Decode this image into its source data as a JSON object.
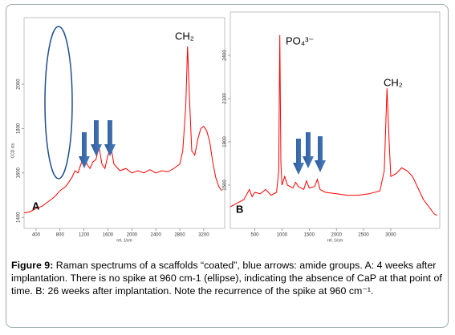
{
  "chart_data": [
    {
      "type": "line",
      "xlabel": "rel. 1/cm",
      "ylabel": "CCD cts",
      "xlim": [
        200,
        3550
      ],
      "xticks": [
        400,
        800,
        1200,
        1600,
        2000,
        2400,
        2800,
        3200
      ],
      "ylim": [
        1350,
        2300
      ],
      "yticks": [
        1400,
        1600,
        1800,
        2000
      ],
      "annotations": [
        "A",
        "CH₂"
      ],
      "x": [
        200,
        300,
        400,
        500,
        600,
        700,
        800,
        900,
        1000,
        1050,
        1100,
        1150,
        1200,
        1250,
        1300,
        1350,
        1400,
        1450,
        1500,
        1550,
        1600,
        1650,
        1700,
        1800,
        1900,
        2000,
        2100,
        2200,
        2300,
        2400,
        2500,
        2600,
        2700,
        2800,
        2850,
        2900,
        2930,
        2960,
        3000,
        3050,
        3100,
        3150,
        3200,
        3250,
        3300,
        3350,
        3400,
        3450,
        3500
      ],
      "series": [
        {
          "color": "#ff0000",
          "values": [
            1420,
            1425,
            1440,
            1450,
            1470,
            1490,
            1520,
            1540,
            1580,
            1610,
            1600,
            1640,
            1680,
            1640,
            1620,
            1650,
            1660,
            1720,
            1640,
            1620,
            1680,
            1720,
            1640,
            1610,
            1620,
            1600,
            1610,
            1600,
            1615,
            1600,
            1610,
            1605,
            1620,
            1640,
            1700,
            1900,
            2170,
            1950,
            1700,
            1680,
            1750,
            1800,
            1810,
            1790,
            1740,
            1650,
            1580,
            1540,
            1520
          ]
        }
      ]
    },
    {
      "type": "line",
      "xlabel": "rel. 1/cm",
      "xlim": [
        50,
        3900
      ],
      "xticks": [
        500,
        1000,
        1500,
        2000,
        2500,
        3000
      ],
      "ylim": [
        1200,
        2700
      ],
      "yticks": [
        1500,
        1800,
        2100,
        2400
      ],
      "annotations": [
        "B",
        "PO₄³⁻",
        "CH₂"
      ],
      "x": [
        50,
        200,
        300,
        400,
        450,
        500,
        600,
        700,
        800,
        900,
        940,
        960,
        980,
        1000,
        1050,
        1100,
        1200,
        1250,
        1300,
        1400,
        1450,
        1500,
        1600,
        1650,
        1700,
        1800,
        2000,
        2200,
        2400,
        2600,
        2800,
        2880,
        2930,
        2970,
        3000,
        3100,
        3200,
        3300,
        3400,
        3500,
        3600,
        3700,
        3800,
        3850
      ],
      "series": [
        {
          "color": "#ff0000",
          "values": [
            1350,
            1380,
            1400,
            1470,
            1420,
            1450,
            1440,
            1470,
            1430,
            1450,
            1600,
            2540,
            1650,
            1500,
            1560,
            1500,
            1480,
            1520,
            1490,
            1470,
            1530,
            1480,
            1490,
            1540,
            1470,
            1450,
            1440,
            1430,
            1430,
            1440,
            1460,
            1600,
            2170,
            1800,
            1560,
            1580,
            1620,
            1600,
            1560,
            1480,
            1400,
            1350,
            1300,
            1290
          ]
        }
      ]
    }
  ],
  "caption": {
    "label": "Figure 9:",
    "text": " Raman spectrums of a scaffolds “coated”, blue arrows: amide groups. A: 4 weeks after implantation. There is no spike at 960 cm-1 (ellipse), indicating the absence of CaP at that point of time. B: 26 weeks after implantation. Note the recurrence of the spike at 960 cm⁻¹."
  }
}
